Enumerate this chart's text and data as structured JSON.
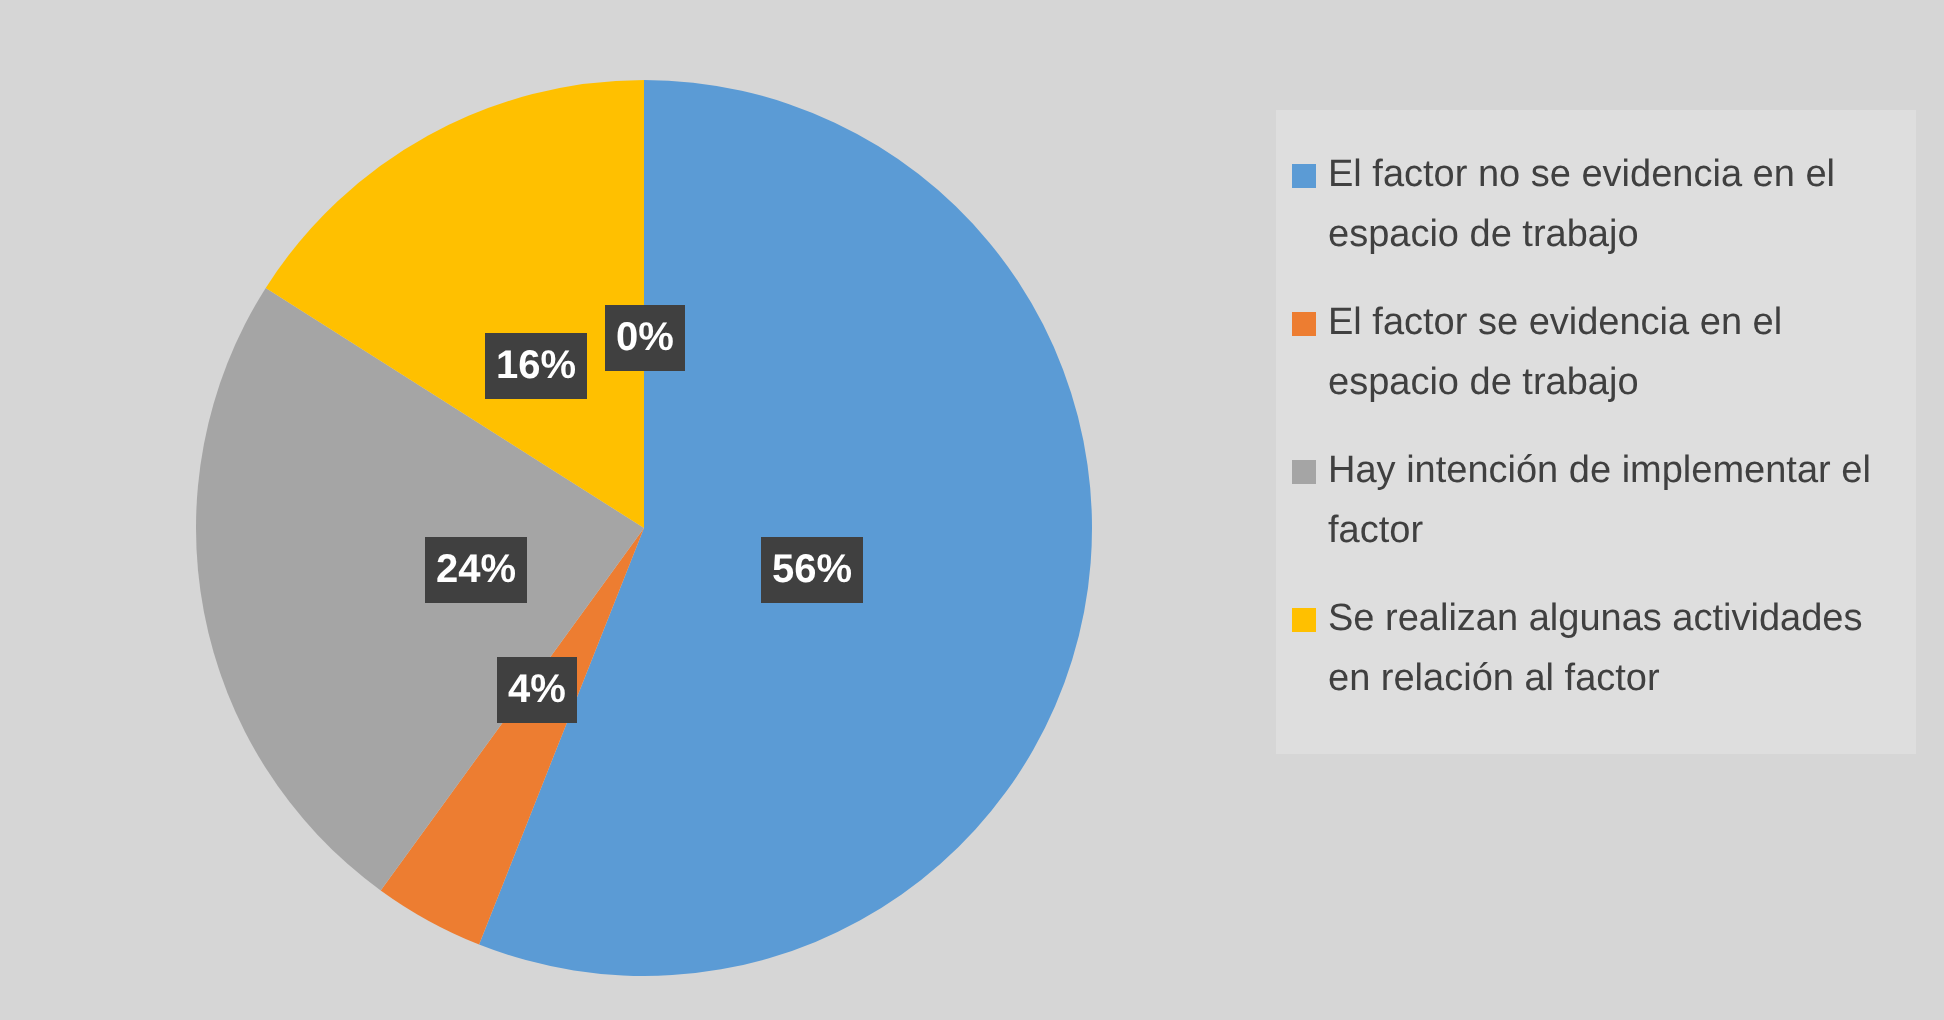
{
  "chart_data": {
    "type": "pie",
    "categories": [
      "El factor no se evidencia en el espacio de trabajo",
      "El factor se evidencia en el espacio de trabajo",
      "Hay intención de implementar el factor",
      "Se realizan algunas actividades en relación al factor",
      null
    ],
    "values": [
      56,
      4,
      24,
      16,
      0
    ],
    "value_labels": [
      "56%",
      "4%",
      "24%",
      "16%",
      "0%"
    ],
    "colors": [
      "#5b9bd5",
      "#ed7d31",
      "#a5a5a5",
      "#ffc000",
      "#4472c4"
    ],
    "legend": "right"
  }
}
